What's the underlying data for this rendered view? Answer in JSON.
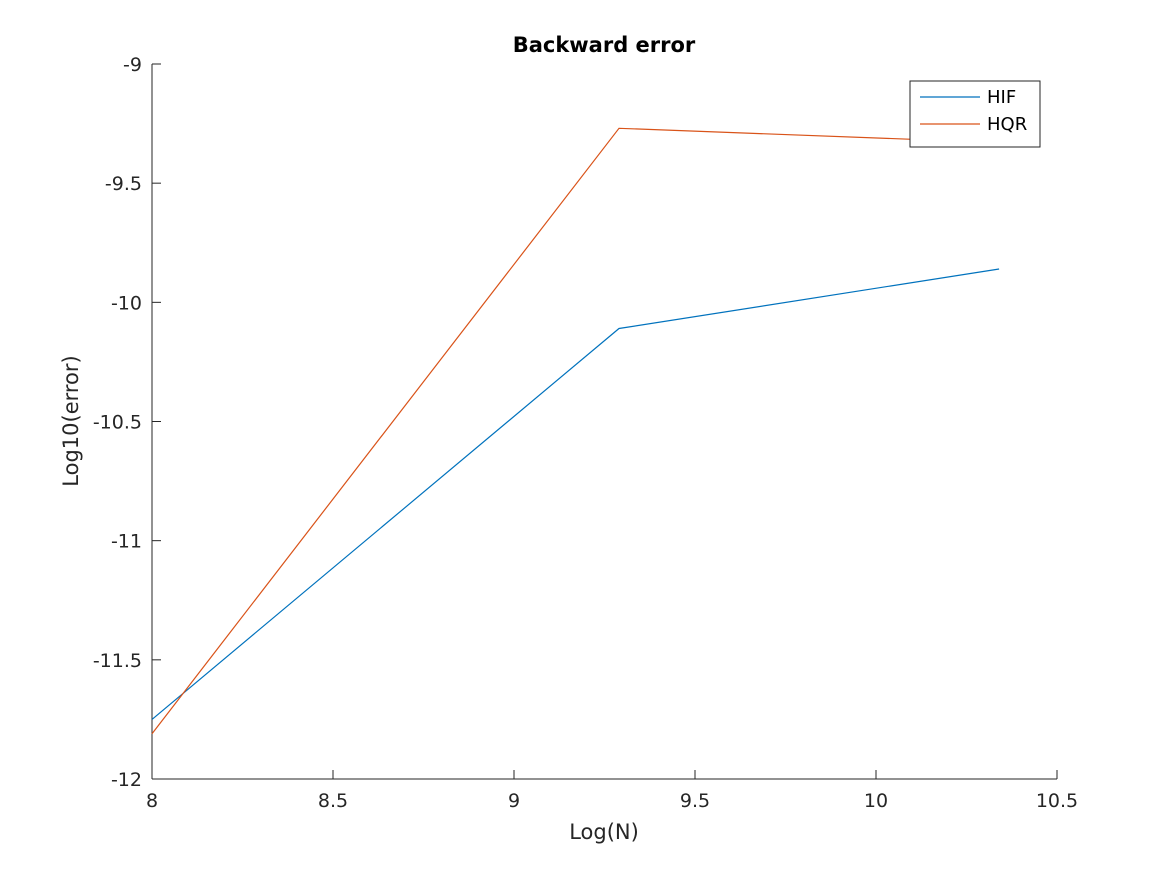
{
  "chart_data": {
    "type": "line",
    "title": "Backward error",
    "xlabel": "Log(N)",
    "ylabel": "Log10(error)",
    "xlim": [
      8,
      10.5
    ],
    "ylim": [
      -12,
      -9
    ],
    "xticks": [
      8,
      8.5,
      9,
      9.5,
      10,
      10.5
    ],
    "xtick_labels": [
      "8",
      "8.5",
      "9",
      "9.5",
      "10",
      "10.5"
    ],
    "yticks": [
      -12,
      -11.5,
      -11,
      -10.5,
      -10,
      -9.5,
      -9
    ],
    "ytick_labels": [
      "-12",
      "-11.5",
      "-11",
      "-10.5",
      "-10",
      "-9.5",
      "-9"
    ],
    "grid": false,
    "legend_position": "top-right",
    "series": [
      {
        "name": "HIF",
        "color": "#0072BD",
        "x": [
          8.0,
          9.29,
          10.34
        ],
        "y": [
          -11.75,
          -10.11,
          -9.86
        ]
      },
      {
        "name": "HQR",
        "color": "#D95319",
        "x": [
          8.0,
          9.29,
          10.34
        ],
        "y": [
          -11.81,
          -9.27,
          -9.33
        ]
      }
    ]
  }
}
